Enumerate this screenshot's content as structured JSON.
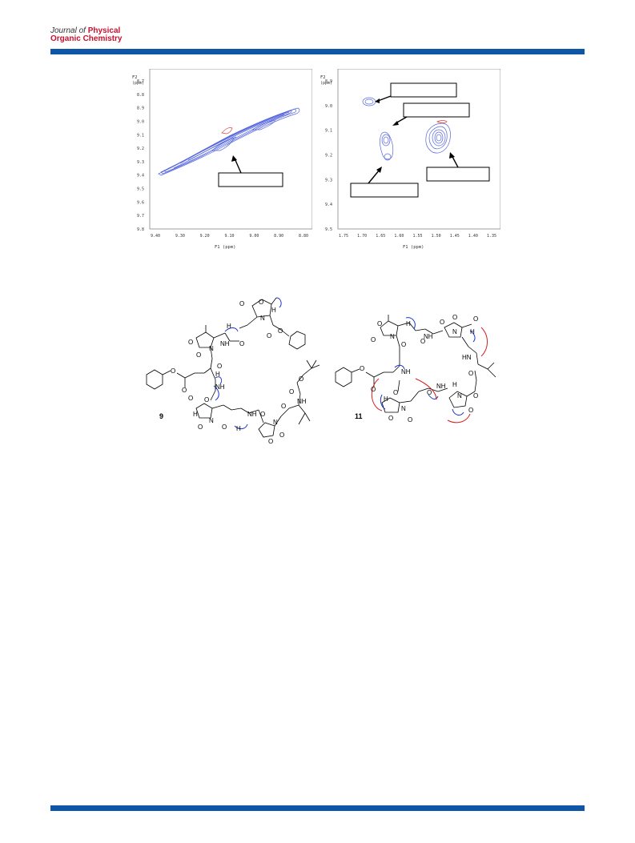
{
  "header": {
    "journal_prefix": "Journal of",
    "journal_physical": "Physical",
    "journal_line2": "Organic Chemistry"
  },
  "spectrum_left": {
    "y_title": "F2",
    "y_unit": "(ppm)",
    "x_title": "F1 (ppm)",
    "y_ticks": [
      "8.7",
      "8.8",
      "8.9",
      "9.0",
      "9.1",
      "9.2",
      "9.3",
      "9.4",
      "9.5",
      "9.6",
      "9.7",
      "9.8"
    ],
    "x_ticks": [
      "9.40",
      "9.30",
      "9.20",
      "9.10",
      "9.00",
      "8.90",
      "8.80"
    ]
  },
  "spectrum_right": {
    "y_title": "F2",
    "y_unit": "(ppm)",
    "x_title": "F1 (ppm)",
    "y_ticks": [
      "8.9",
      "9.0",
      "9.1",
      "9.2",
      "9.3",
      "9.4",
      "9.5"
    ],
    "x_ticks": [
      "1.75",
      "1.70",
      "1.65",
      "1.60",
      "1.55",
      "1.50",
      "1.45",
      "1.40",
      "1.35"
    ]
  },
  "structure_9": {
    "compound_number": "9",
    "atom_labels": [
      "O",
      "O",
      "N",
      "O",
      "O",
      "H",
      "H",
      "NH",
      "O",
      "O",
      "O",
      "N",
      "O",
      "H",
      "NH",
      "O",
      "O",
      "H",
      "O",
      "N",
      "O",
      "O",
      "NH",
      "H",
      "O",
      "O",
      "N",
      "O",
      "O",
      "NH",
      "O",
      "O",
      "O"
    ]
  },
  "structure_11": {
    "compound_number": "11",
    "atom_labels": [
      "O",
      "O",
      "N",
      "O",
      "O",
      "H",
      "NH",
      "O",
      "O",
      "N",
      "H",
      "O",
      "HN",
      "O",
      "O",
      "NH",
      "O",
      "H",
      "O",
      "N",
      "O",
      "O",
      "NH",
      "N",
      "H",
      "O",
      "O",
      "O"
    ]
  },
  "colors": {
    "bar": "#0f57a6",
    "contour": "#5566dd",
    "contour_red": "#dd4444",
    "noe_blue": "#1a33cc",
    "noe_red": "#d41e1e"
  }
}
